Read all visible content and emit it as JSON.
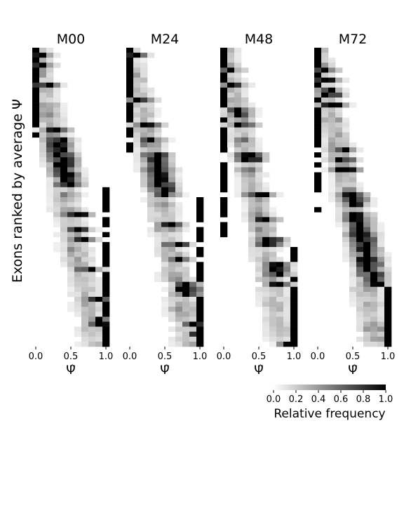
{
  "chart_data": {
    "type": "heatmap",
    "ylabel": "Exons ranked by average Ψ",
    "panels": [
      {
        "title": "M00",
        "xlabel": "Ψ̂",
        "xticks": [
          "0.0",
          "0.5",
          "1.0"
        ]
      },
      {
        "title": "M24",
        "xlabel": "Ψ̂",
        "xticks": [
          "0.0",
          "0.5",
          "1.0"
        ]
      },
      {
        "title": "M48",
        "xlabel": "Ψ̂",
        "xticks": [
          "0.0",
          "0.5",
          "1.0"
        ]
      },
      {
        "title": "M72",
        "xlabel": "Ψ̂",
        "xticks": [
          "0.0",
          "0.5",
          "1.0"
        ]
      }
    ],
    "xlim": [
      0,
      1
    ],
    "bins": 11,
    "rows": 60,
    "colorbar": {
      "label": "Relative frequency",
      "range": [
        0,
        1
      ],
      "ticks": [
        "0.0",
        "0.2",
        "0.4",
        "0.6",
        "0.8",
        "1.0"
      ],
      "colors": [
        "#ffffff",
        "#000000"
      ]
    },
    "grid": false
  }
}
